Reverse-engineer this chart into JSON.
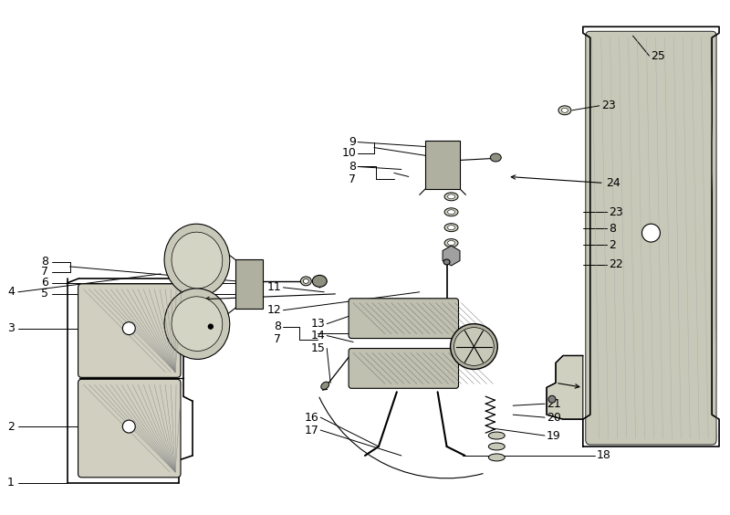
{
  "bg_color": "#ffffff",
  "line_color": "#000000",
  "figure_size": [
    8.0,
    5.64
  ],
  "dpi": 100,
  "label_fontsize": 9
}
